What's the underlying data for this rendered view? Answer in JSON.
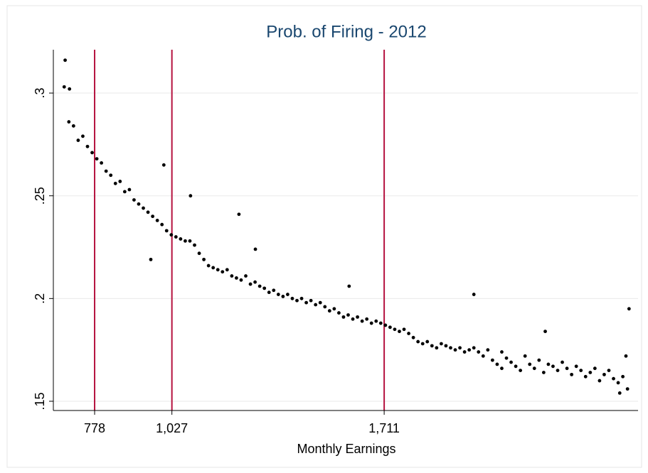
{
  "chart_data": {
    "type": "scatter",
    "title": "Prob. of Firing - 2012",
    "xlabel": "Monthly Earnings",
    "color": "#000000",
    "xgrid": true,
    "xgrid_color": "#b5123f",
    "ygrid": true,
    "ygrid_color": "#eaeaea",
    "xlim": [
      645,
      2529
    ],
    "ylim": [
      0.1455,
      0.3211
    ],
    "xticks": [
      778,
      {
        "value": 1027,
        "label": "1,027"
      },
      {
        "value": 1711,
        "label": "1,711"
      }
    ],
    "yticks": [
      {
        "value": 0.15,
        "label": ".15"
      },
      {
        "value": 0.2,
        "label": ".2"
      },
      {
        "value": 0.25,
        "label": ".25"
      },
      {
        "value": 0.3,
        "label": ".3"
      }
    ],
    "x": [
      680,
      695,
      710,
      725,
      740,
      755,
      770,
      785,
      800,
      815,
      830,
      845,
      860,
      875,
      890,
      905,
      920,
      935,
      950,
      965,
      980,
      995,
      1010,
      1025,
      1040,
      1055,
      1070,
      1085,
      1100,
      1115,
      1130,
      1145,
      1160,
      1175,
      1190,
      1205,
      1220,
      1235,
      1250,
      1265,
      1280,
      1295,
      1310,
      1325,
      1340,
      1355,
      1370,
      1385,
      1400,
      1415,
      1430,
      1445,
      1460,
      1475,
      1490,
      1505,
      1520,
      1535,
      1550,
      1565,
      1580,
      1595,
      1610,
      1625,
      1640,
      1655,
      1670,
      1685,
      1700,
      1715,
      1730,
      1745,
      1760,
      1775,
      1790,
      1805,
      1820,
      1835,
      1850,
      1865,
      1880,
      1895,
      1910,
      1925,
      1940,
      1955,
      1970,
      1985,
      2000,
      2015,
      2030,
      2045,
      2060,
      2075,
      2090,
      2105,
      2120,
      2135,
      2150,
      2165,
      2180,
      2195,
      2210,
      2225,
      2240,
      2255,
      2270,
      2285,
      2300,
      2315,
      2330,
      2345,
      2360,
      2375,
      2390,
      2405,
      2420,
      2435,
      2450,
      2465,
      2480,
      2495,
      683,
      697,
      959,
      1001,
      1087,
      1243,
      1296,
      1598,
      2000,
      2090,
      2230,
      2500,
      2490,
      2470
    ],
    "values": [
      0.303,
      0.286,
      0.284,
      0.277,
      0.279,
      0.274,
      0.271,
      0.268,
      0.266,
      0.262,
      0.26,
      0.256,
      0.257,
      0.252,
      0.253,
      0.248,
      0.246,
      0.244,
      0.242,
      0.24,
      0.238,
      0.236,
      0.233,
      0.231,
      0.23,
      0.229,
      0.228,
      0.228,
      0.226,
      0.222,
      0.219,
      0.216,
      0.215,
      0.214,
      0.213,
      0.214,
      0.211,
      0.21,
      0.209,
      0.211,
      0.207,
      0.208,
      0.206,
      0.205,
      0.203,
      0.204,
      0.202,
      0.201,
      0.202,
      0.2,
      0.199,
      0.2,
      0.198,
      0.199,
      0.197,
      0.198,
      0.196,
      0.194,
      0.195,
      0.193,
      0.191,
      0.192,
      0.19,
      0.191,
      0.189,
      0.19,
      0.188,
      0.189,
      0.188,
      0.187,
      0.186,
      0.185,
      0.184,
      0.185,
      0.183,
      0.181,
      0.179,
      0.178,
      0.179,
      0.177,
      0.176,
      0.178,
      0.177,
      0.176,
      0.175,
      0.176,
      0.174,
      0.175,
      0.176,
      0.174,
      0.172,
      0.175,
      0.17,
      0.168,
      0.166,
      0.171,
      0.169,
      0.167,
      0.165,
      0.172,
      0.168,
      0.166,
      0.17,
      0.164,
      0.168,
      0.167,
      0.165,
      0.169,
      0.166,
      0.163,
      0.167,
      0.165,
      0.162,
      0.164,
      0.166,
      0.16,
      0.163,
      0.165,
      0.161,
      0.159,
      0.162,
      0.156,
      0.316,
      0.302,
      0.219,
      0.265,
      0.25,
      0.241,
      0.224,
      0.206,
      0.202,
      0.174,
      0.184,
      0.195,
      0.172,
      0.154
    ]
  }
}
